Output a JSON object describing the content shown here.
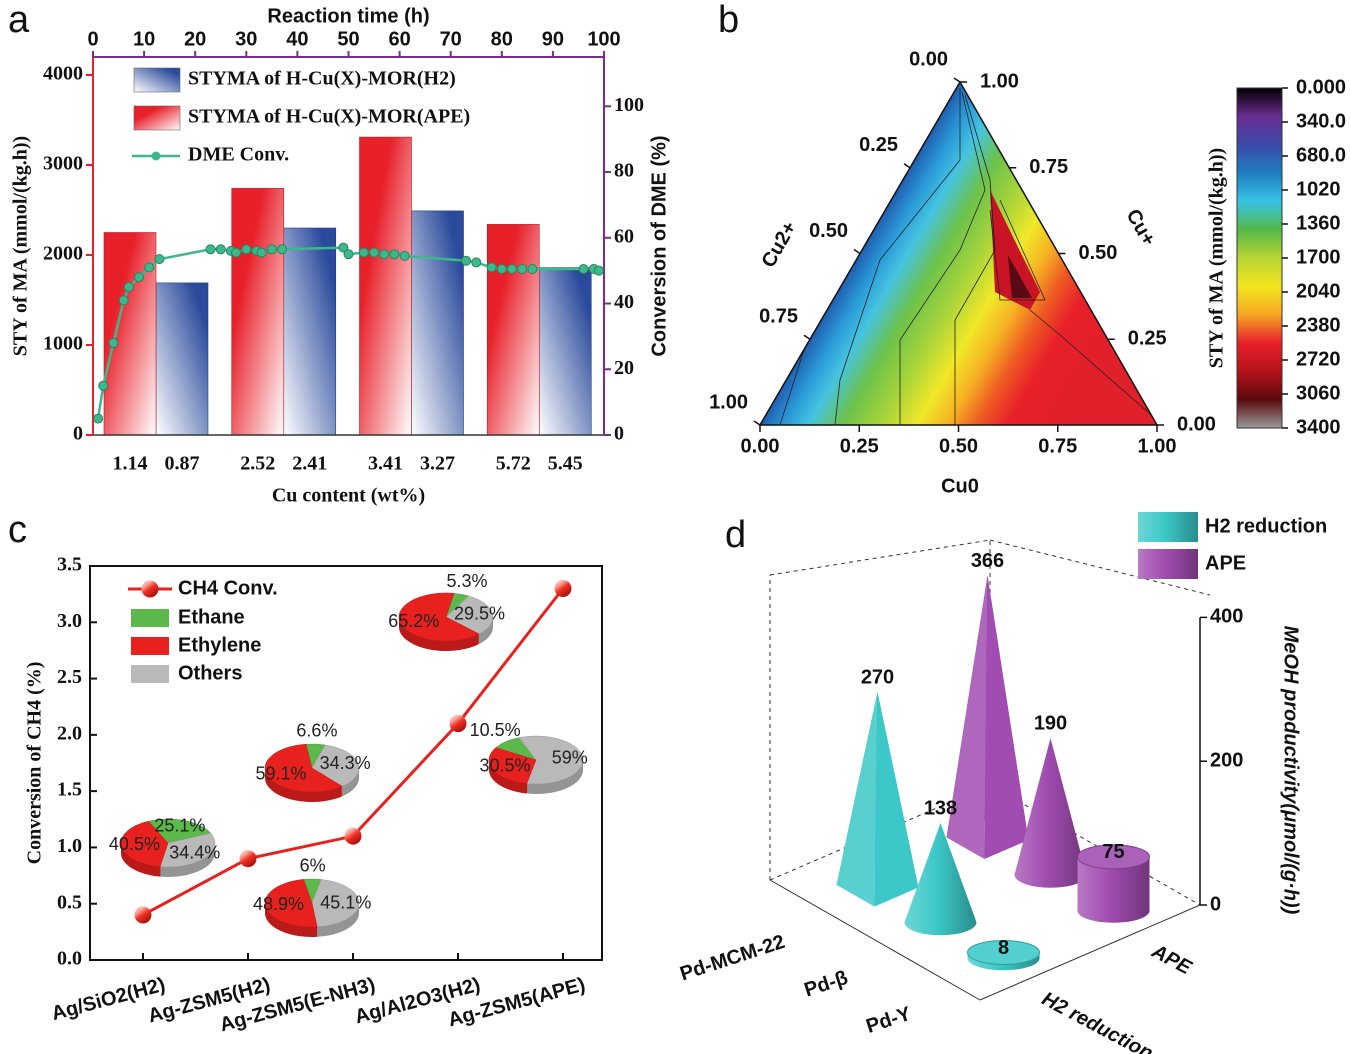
{
  "chart_data": [
    {
      "type": "bar",
      "panel_label": "a",
      "categories": [
        "1.14",
        "0.87",
        "2.52",
        "2.41",
        "3.41",
        "3.27",
        "5.72",
        "5.45"
      ],
      "series": [
        {
          "name": "STYMA of H-Cu(X)-MOR(H2)",
          "color": "#2a4a9c",
          "values": [
            null,
            1690,
            null,
            2300,
            null,
            2490,
            null,
            1860
          ]
        },
        {
          "name": "STYMA of H-Cu(X)-MOR(APE)",
          "color": "#e8202a",
          "values": [
            2250,
            null,
            2740,
            null,
            3310,
            null,
            2340,
            null
          ]
        },
        {
          "name": "DME Conv.",
          "color": "#3cb98a",
          "type": "line",
          "axis": "y2",
          "x": [
            1,
            2,
            4,
            6,
            7,
            9,
            11,
            13,
            23,
            25,
            27,
            28,
            30,
            32,
            33,
            35,
            37,
            49,
            50,
            53,
            55,
            57,
            59,
            61,
            73,
            75,
            78,
            80,
            82,
            84,
            86,
            96,
            98,
            99
          ],
          "values": [
            5,
            15,
            28,
            41,
            45,
            48,
            51,
            53.5,
            56.5,
            56.5,
            56,
            55.5,
            56.5,
            56,
            55.5,
            56.5,
            56.5,
            57,
            55,
            55.5,
            55.5,
            55,
            55,
            54.5,
            53,
            52.5,
            51,
            50.5,
            50.5,
            50.5,
            50.5,
            50.5,
            50.5,
            50
          ]
        }
      ],
      "xlabel": "Cu content (wt%)",
      "ylabel": "STY of MA (mmol/(kg.h))",
      "y2label": "Conversion of DME (%)",
      "x2label": "Reaction time (h)",
      "ylim": [
        0,
        4200
      ],
      "yticks": [
        0,
        1000,
        2000,
        3000,
        4000
      ],
      "y2lim": [
        0,
        115
      ],
      "y2ticks": [
        0,
        20,
        40,
        60,
        80,
        100
      ],
      "x2lim": [
        0,
        100
      ],
      "x2ticks": [
        0,
        10,
        20,
        30,
        40,
        50,
        60,
        70,
        80,
        90,
        100
      ]
    },
    {
      "type": "ternary",
      "panel_label": "b",
      "axes": [
        {
          "label": "Cu0",
          "ticks": [
            {
              "value": 0,
              "label": "0.00"
            },
            0.25,
            {
              "value": 0.5,
              "label": "0.50"
            },
            0.75,
            {
              "value": 1,
              "label": "1.00"
            }
          ]
        },
        {
          "label": "Cu+",
          "ticks": [
            {
              "value": 0,
              "label": "0.00"
            },
            0.25,
            {
              "value": 0.5,
              "label": "0.50"
            },
            0.75,
            {
              "value": 1,
              "label": "1.00"
            }
          ]
        },
        {
          "label": "Cu2+",
          "ticks": [
            {
              "value": 0,
              "label": "0.00"
            },
            0.25,
            {
              "value": 0.5,
              "label": "0.50"
            },
            0.75,
            {
              "value": 1,
              "label": "1.00"
            }
          ]
        }
      ],
      "colorbar": {
        "label": "STY of MA (mmol/(kg.h))",
        "lim": [
          0,
          3400
        ],
        "ticks": [
          {
            "value": 0,
            "label": "0.000"
          },
          {
            "value": 340,
            "label": "340.0"
          },
          {
            "value": 680,
            "label": "680.0"
          },
          1020,
          1360,
          1700,
          2040,
          2380,
          2720,
          3060,
          3400
        ],
        "colors": [
          "#000000",
          "#6a2c91",
          "#3b4aa8",
          "#1f7fc0",
          "#36c3e6",
          "#55b848",
          "#b9d534",
          "#f2e51d",
          "#f5a623",
          "#e8202a",
          "#b5121b",
          "#5a0a0e",
          "#9a9a9a"
        ]
      }
    },
    {
      "type": "line",
      "panel_label": "c",
      "categories": [
        "Ag/SiO2(H2)",
        "Ag-ZSM5(H2)",
        "Ag-ZSM5(E-NH3)",
        "Ag/Al2O3(H2)",
        "Ag-ZSM5(APE)"
      ],
      "series": [
        {
          "name": "CH4 Conv.",
          "color": "#e8211e",
          "values": [
            0.4,
            0.9,
            1.1,
            2.1,
            3.3
          ]
        }
      ],
      "ylabel": "Conversion of CH4 (%)",
      "ylim": [
        0,
        3.5
      ],
      "yticks": [
        {
          "value": 0,
          "label": "0.0"
        },
        0.5,
        {
          "value": 1,
          "label": "1.0"
        },
        1.5,
        {
          "value": 2,
          "label": "2.0"
        },
        2.5,
        {
          "value": 3,
          "label": "3.0"
        },
        3.5
      ],
      "pies": {
        "labels": [
          "Ethane",
          "Ethylene",
          "Others"
        ],
        "colors": [
          "#5cb84a",
          "#e8211e",
          "#b9b9b9"
        ],
        "values": [
          [
            25.1,
            40.5,
            34.4
          ],
          [
            6,
            48.9,
            45.1
          ],
          [
            6.6,
            59.1,
            34.3
          ],
          [
            10.5,
            30.5,
            59
          ],
          [
            5.3,
            65.2,
            29.5
          ]
        ],
        "value_labels": [
          [
            "25.1%",
            "40.5%",
            "34.4%"
          ],
          [
            "6%",
            "48.9%",
            "45.1%"
          ],
          [
            "6.6%",
            "59.1%",
            "34.3%"
          ],
          [
            "10.5%",
            "30.5%",
            "59%"
          ],
          [
            "5.3%",
            "65.2%",
            "29.5%"
          ]
        ]
      }
    },
    {
      "type": "bar3d",
      "panel_label": "d",
      "categories": [
        "Pd-MCM-22",
        "Pd-β",
        "Pd-Y"
      ],
      "column_labels": [
        "H2 reduction",
        "APE"
      ],
      "shapes": [
        "pyramid",
        "cone",
        "cylinder"
      ],
      "series": [
        {
          "name": "H2 reduction",
          "color": "#3cc8c8",
          "values": [
            270,
            138,
            8
          ]
        },
        {
          "name": "APE",
          "color": "#a04cb0",
          "values": [
            366,
            190,
            75
          ]
        }
      ],
      "zlabel": "MeOH productivity(μmol/(g·h))",
      "zlim": [
        0,
        420
      ],
      "zticks": [
        0,
        200,
        400
      ]
    }
  ]
}
